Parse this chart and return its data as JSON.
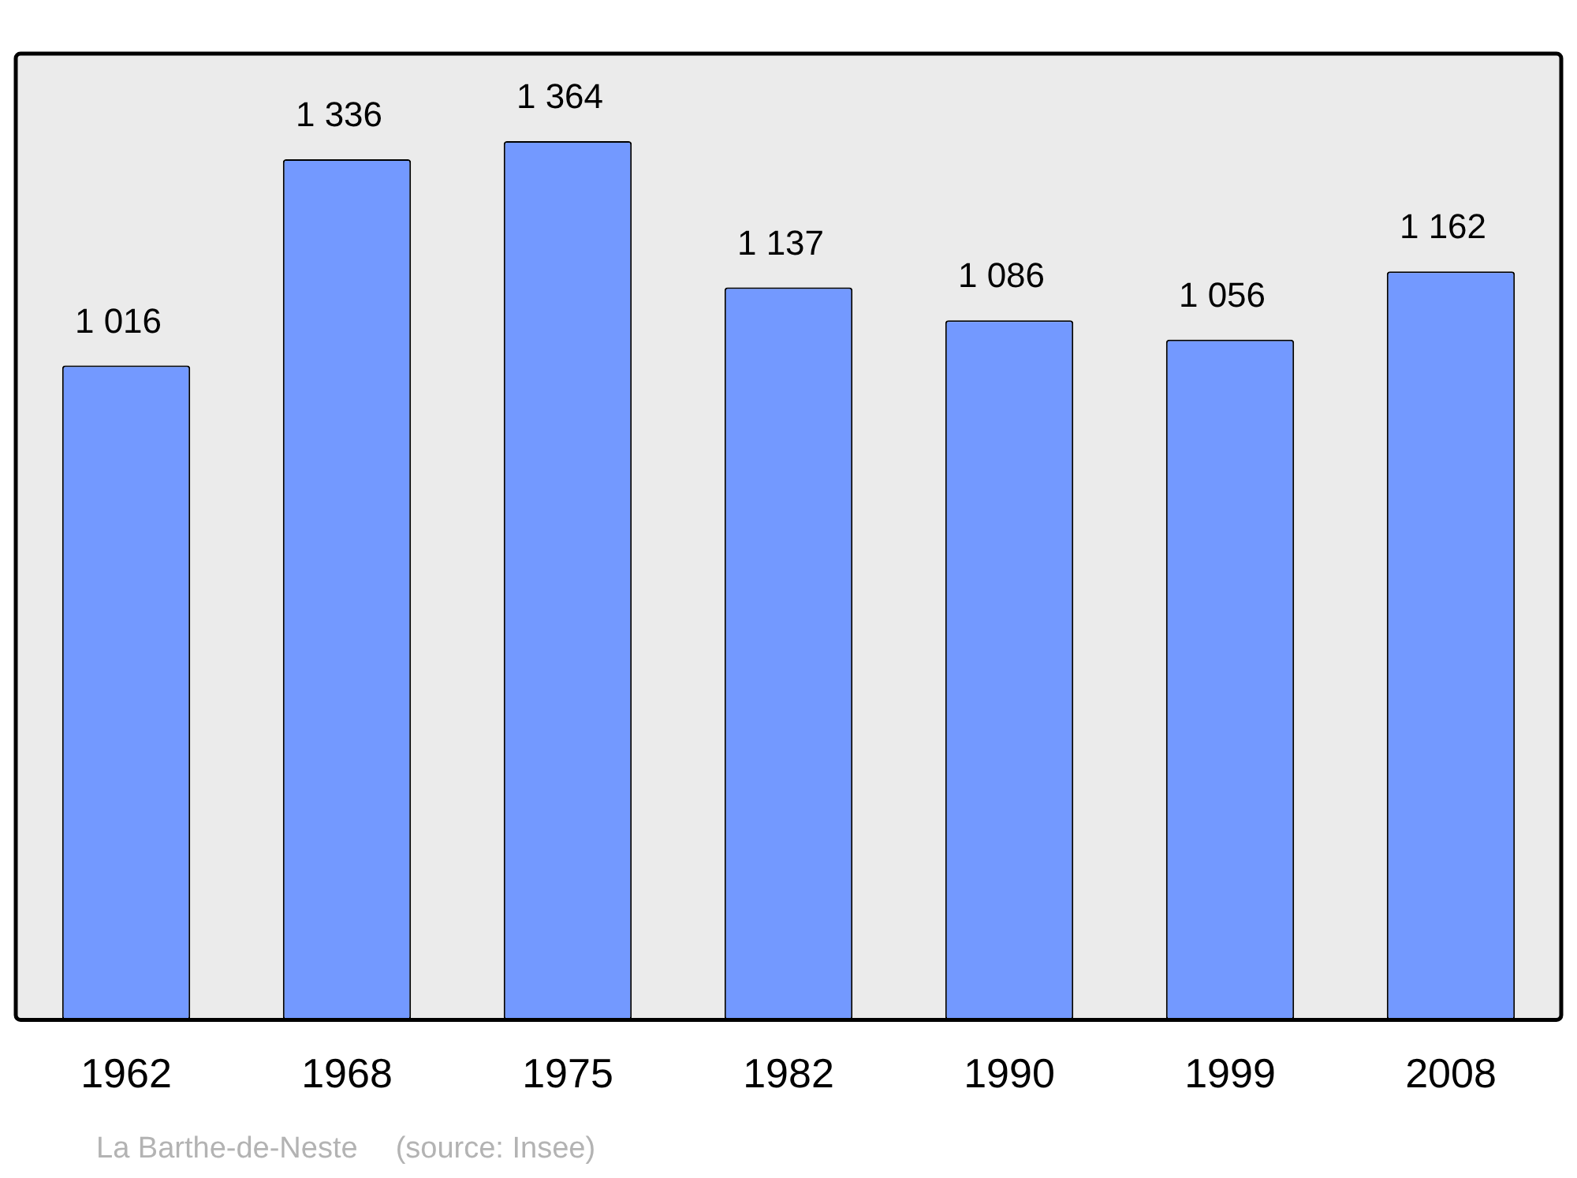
{
  "chart_data": {
    "type": "bar",
    "categories": [
      "1962",
      "1968",
      "1975",
      "1982",
      "1990",
      "1999",
      "2008"
    ],
    "values": [
      1016,
      1336,
      1364,
      1137,
      1086,
      1056,
      1162
    ],
    "value_labels": [
      "1 016",
      "1 336",
      "1 364",
      "1 137",
      "1 086",
      "1 056",
      "1 162"
    ],
    "color": "#7399ff",
    "ylim": [
      0,
      1500
    ],
    "tick_labels": "x",
    "grid": false,
    "legend": false,
    "annotations": [
      "La Barthe-de-Neste",
      "(source: Insee)"
    ]
  }
}
